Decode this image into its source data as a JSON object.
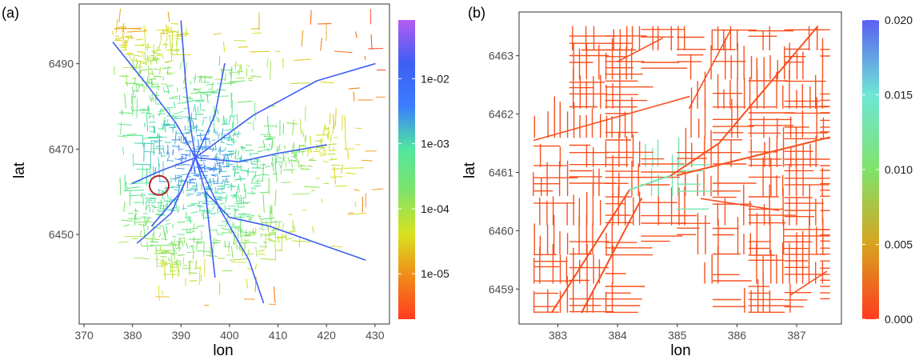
{
  "chart_data": [
    {
      "type": "scatter",
      "panel_label": "(a)",
      "xlabel": "lon",
      "ylabel": "lat",
      "xlim": [
        369,
        433
      ],
      "ylim": [
        6429,
        6504
      ],
      "x_ticks": [
        370,
        380,
        390,
        400,
        410,
        420,
        430
      ],
      "x_tick_labels": [
        "370",
        "380",
        "390",
        "400",
        "410",
        "420",
        "430"
      ],
      "y_ticks": [
        6450,
        6470,
        6490
      ],
      "y_tick_labels": [
        "6450",
        "6470",
        "6490"
      ],
      "colorbar": {
        "scale": "log",
        "range": [
          2e-06,
          0.08
        ],
        "ticks": [
          1e-05,
          0.0001,
          0.001,
          0.01
        ],
        "tick_labels": [
          "1e-05",
          "1e-04",
          "1e-03",
          "1e-02"
        ],
        "colormap": [
          "#ff3b1f",
          "#f28a1a",
          "#d8e21f",
          "#7fe36b",
          "#50e6a0",
          "#3b7cff",
          "#3e5ff2",
          "#b45cf2"
        ]
      },
      "highlight_circle": {
        "x": 385.5,
        "y": 6461.5,
        "color": "#b22222"
      },
      "grid": false
    },
    {
      "type": "scatter",
      "panel_label": "(b)",
      "xlabel": "lon",
      "ylabel": "lat",
      "xlim": [
        382.35,
        387.75
      ],
      "ylim": [
        6458.4,
        6463.75
      ],
      "x_ticks": [
        383,
        384,
        385,
        386,
        387
      ],
      "x_tick_labels": [
        "383",
        "384",
        "385",
        "386",
        "387"
      ],
      "y_ticks": [
        6459,
        6460,
        6461,
        6462,
        6463
      ],
      "y_tick_labels": [
        "6459",
        "6460",
        "6461",
        "6462",
        "6463"
      ],
      "colorbar": {
        "scale": "linear",
        "range": [
          0,
          0.02
        ],
        "ticks": [
          0,
          0.005,
          0.01,
          0.015,
          0.02
        ],
        "tick_labels": [
          "0.000",
          "0.005",
          "0.010",
          "0.015",
          "0.020"
        ],
        "colormap": [
          "#ff3b1f",
          "#d8a31f",
          "#7fe36b",
          "#6ee6d6",
          "#5a5ff2"
        ]
      },
      "dominant_value": 0.001,
      "highlight_region_value": 0.013,
      "grid": false
    }
  ]
}
